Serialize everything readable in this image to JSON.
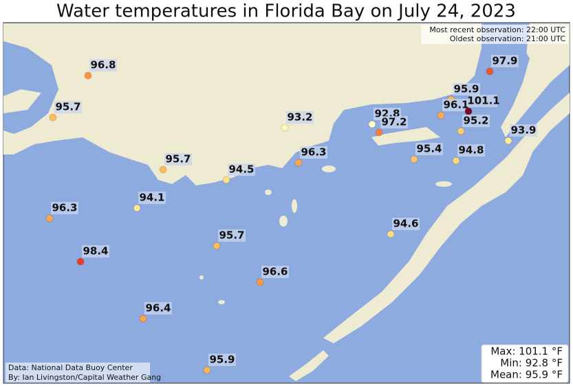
{
  "title": "Water temperatures in Florida Bay on July 24, 2023",
  "observations": [
    "Most recent observation: 22:00 UTC",
    "Oldest observation: 21:00 UTC"
  ],
  "stations": [
    {
      "value": 96.8
    },
    {
      "value": 95.7
    },
    {
      "value": 93.2
    },
    {
      "value": 92.8
    },
    {
      "value": 97.2
    },
    {
      "value": 95.9
    },
    {
      "value": 96.1
    },
    {
      "value": 101.1
    },
    {
      "value": 97.9
    },
    {
      "value": 95.2
    },
    {
      "value": 93.9
    },
    {
      "value": 95.4
    },
    {
      "value": 94.8
    },
    {
      "value": 96.3
    },
    {
      "value": 95.7
    },
    {
      "value": 94.5
    },
    {
      "value": 94.1
    },
    {
      "value": 96.3
    },
    {
      "value": 94.6
    },
    {
      "value": 95.7
    },
    {
      "value": 98.4
    },
    {
      "value": 96.6
    },
    {
      "value": 96.4
    },
    {
      "value": 95.9
    }
  ],
  "stats": [
    "Max: 101.1 °F",
    "Min: 92.8 °F",
    "Mean: 95.9 °F"
  ],
  "source": [
    "Data: National Data Buoy Center",
    "By: Ian Livingston/Capital Weather Gang"
  ]
}
